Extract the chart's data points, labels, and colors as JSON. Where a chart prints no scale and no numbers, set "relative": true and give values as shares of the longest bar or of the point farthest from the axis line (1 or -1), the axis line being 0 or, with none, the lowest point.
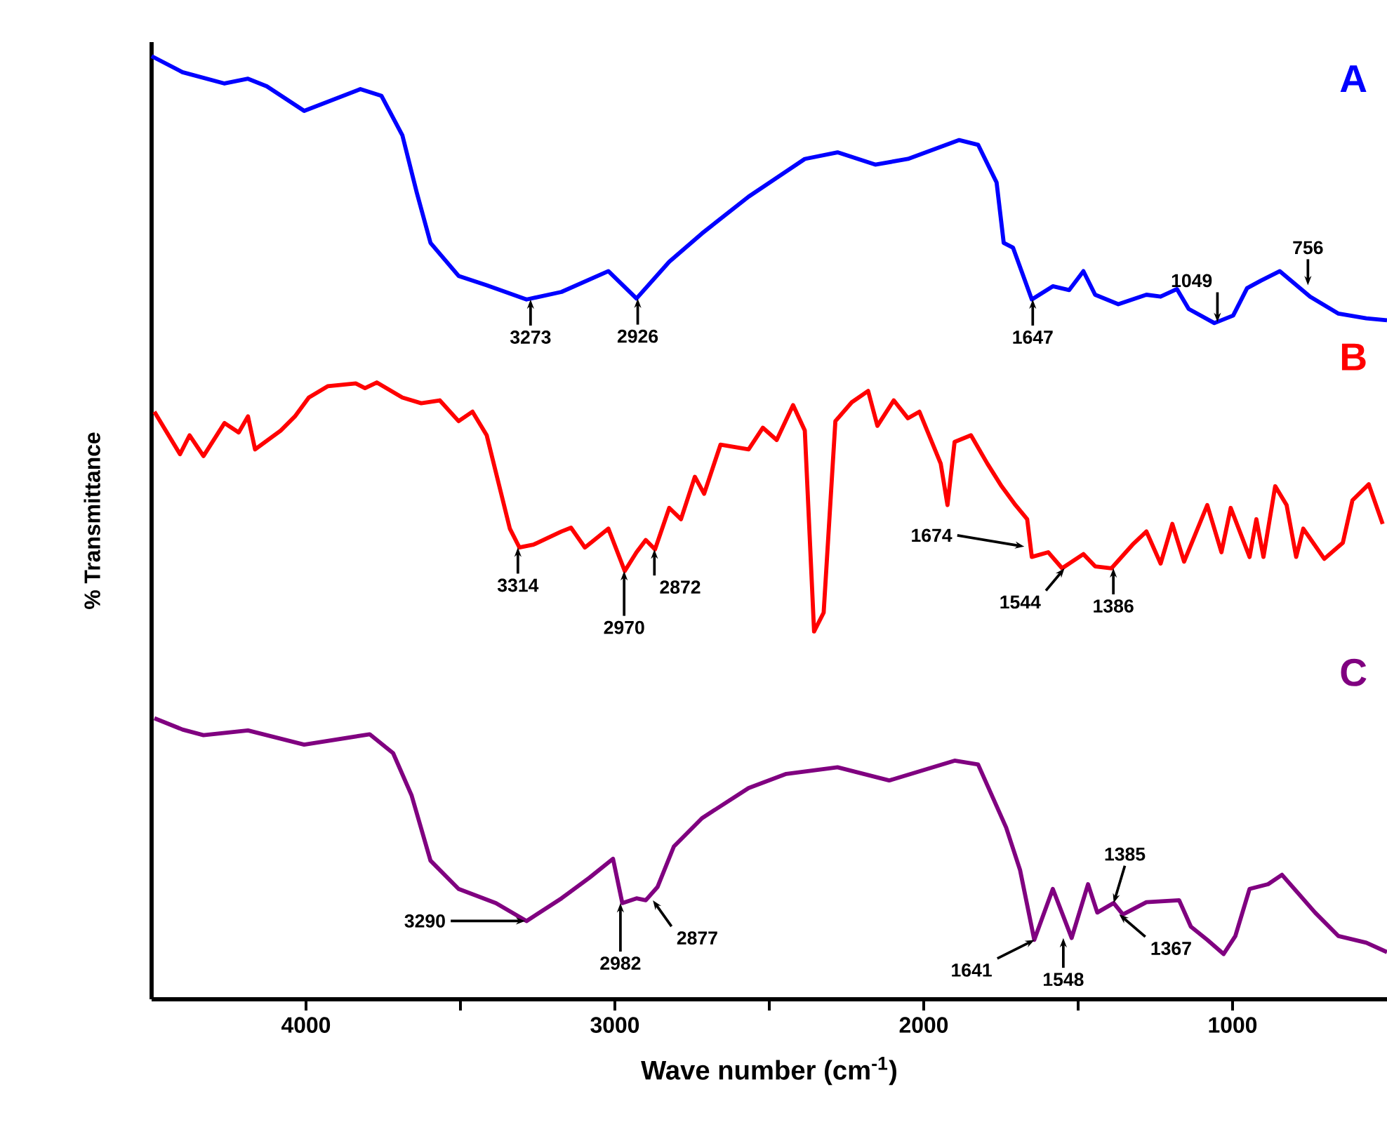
{
  "chart_data": {
    "type": "line",
    "relative": true,
    "line_style": "solid",
    "xlabel": "Wave number (cm$^{-1}$)",
    "ylabel": "% Transmittance",
    "xlim": [
      4500,
      500
    ],
    "xticks": [
      {
        "value": 3500,
        "label": null
      },
      {
        "value": 2500,
        "label": null
      },
      {
        "value": 1500,
        "label": null
      },
      4000,
      3000,
      2000,
      1000
    ],
    "series": [
      {
        "name": "A",
        "color": "#0000ff",
        "x": [
          4500,
          4400,
          4264,
          4188,
          4127,
          4006,
          3824,
          3756,
          3688,
          3642,
          3597,
          3506,
          3415,
          3286,
          3173,
          3021,
          2930,
          2824,
          2718,
          2567,
          2385,
          2279,
          2157,
          2051,
          1885,
          1824,
          1764,
          1741,
          1711,
          1650,
          1582,
          1529,
          1483,
          1445,
          1370,
          1279,
          1233,
          1180,
          1142,
          1059,
          998,
          953,
          908,
          847,
          749,
          657,
          567,
          500
        ],
        "values": [
          1.0,
          0.983,
          0.971,
          0.976,
          0.968,
          0.942,
          0.965,
          0.958,
          0.916,
          0.856,
          0.802,
          0.767,
          0.757,
          0.742,
          0.75,
          0.772,
          0.743,
          0.782,
          0.812,
          0.851,
          0.891,
          0.898,
          0.885,
          0.891,
          0.911,
          0.906,
          0.866,
          0.802,
          0.797,
          0.742,
          0.756,
          0.752,
          0.772,
          0.747,
          0.737,
          0.747,
          0.745,
          0.753,
          0.732,
          0.717,
          0.725,
          0.754,
          0.762,
          0.772,
          0.745,
          0.727,
          0.722,
          0.72
        ]
      },
      {
        "name": "B",
        "color": "#ff0000",
        "x": [
          4491,
          4408,
          4377,
          4332,
          4264,
          4218,
          4188,
          4165,
          4082,
          4036,
          3991,
          3930,
          3839,
          3809,
          3771,
          3688,
          3627,
          3567,
          3506,
          3461,
          3415,
          3340,
          3309,
          3264,
          3173,
          3142,
          3097,
          3021,
          2968,
          2930,
          2900,
          2870,
          2824,
          2786,
          2741,
          2711,
          2658,
          2567,
          2521,
          2476,
          2423,
          2385,
          2355,
          2324,
          2286,
          2233,
          2180,
          2150,
          2097,
          2051,
          2014,
          1945,
          1923,
          1900,
          1847,
          1794,
          1748,
          1703,
          1665,
          1650,
          1597,
          1552,
          1483,
          1445,
          1392,
          1324,
          1279,
          1233,
          1195,
          1157,
          1082,
          1036,
          1006,
          945,
          923,
          900,
          862,
          825,
          794,
          771,
          703,
          643,
          612,
          559,
          514
        ],
        "values": [
          0.623,
          0.578,
          0.598,
          0.576,
          0.611,
          0.601,
          0.618,
          0.583,
          0.603,
          0.618,
          0.638,
          0.65,
          0.653,
          0.648,
          0.654,
          0.638,
          0.632,
          0.635,
          0.613,
          0.623,
          0.598,
          0.499,
          0.479,
          0.482,
          0.496,
          0.5,
          0.479,
          0.499,
          0.454,
          0.474,
          0.487,
          0.477,
          0.521,
          0.509,
          0.554,
          0.536,
          0.588,
          0.583,
          0.606,
          0.593,
          0.63,
          0.603,
          0.39,
          0.41,
          0.613,
          0.633,
          0.645,
          0.608,
          0.635,
          0.616,
          0.623,
          0.568,
          0.524,
          0.591,
          0.598,
          0.568,
          0.544,
          0.524,
          0.509,
          0.469,
          0.474,
          0.457,
          0.472,
          0.459,
          0.457,
          0.482,
          0.496,
          0.462,
          0.504,
          0.464,
          0.524,
          0.474,
          0.521,
          0.469,
          0.509,
          0.469,
          0.544,
          0.524,
          0.469,
          0.499,
          0.467,
          0.484,
          0.529,
          0.546,
          0.504
        ]
      },
      {
        "name": "C",
        "color": "#800080",
        "x": [
          4491,
          4400,
          4332,
          4188,
          4006,
          3794,
          3718,
          3658,
          3597,
          3506,
          3385,
          3286,
          3173,
          3082,
          3006,
          2976,
          2930,
          2900,
          2862,
          2809,
          2718,
          2567,
          2445,
          2279,
          2112,
          1900,
          1824,
          1733,
          1688,
          1642,
          1582,
          1521,
          1468,
          1438,
          1385,
          1355,
          1279,
          1173,
          1135,
          1082,
          1029,
          991,
          945,
          885,
          840,
          733,
          657,
          567,
          500
        ],
        "values": [
          0.298,
          0.286,
          0.28,
          0.285,
          0.27,
          0.281,
          0.261,
          0.216,
          0.147,
          0.117,
          0.102,
          0.083,
          0.107,
          0.129,
          0.149,
          0.102,
          0.107,
          0.105,
          0.119,
          0.162,
          0.192,
          0.224,
          0.239,
          0.246,
          0.232,
          0.253,
          0.249,
          0.182,
          0.137,
          0.063,
          0.117,
          0.065,
          0.122,
          0.092,
          0.102,
          0.09,
          0.103,
          0.105,
          0.077,
          0.063,
          0.048,
          0.067,
          0.117,
          0.122,
          0.132,
          0.092,
          0.067,
          0.06,
          0.05
        ]
      }
    ],
    "annotations": [
      {
        "text": "3273",
        "x": 3273,
        "y": 0.742
      },
      {
        "text": "2926",
        "x": 2926,
        "y": 0.743
      },
      {
        "text": "1647",
        "x": 1647,
        "y": 0.742
      },
      {
        "text": "1049",
        "x": 1049,
        "y": 0.718
      },
      {
        "text": "756",
        "x": 756,
        "y": 0.757
      },
      {
        "text": "3314",
        "x": 3314,
        "y": 0.479
      },
      {
        "text": "2970",
        "x": 2970,
        "y": 0.454
      },
      {
        "text": "2872",
        "x": 2872,
        "y": 0.477
      },
      {
        "text": "1674",
        "x": 1674,
        "y": 0.48
      },
      {
        "text": "1544",
        "x": 1544,
        "y": 0.457
      },
      {
        "text": "1386",
        "x": 1386,
        "y": 0.457
      },
      {
        "text": "3290",
        "x": 3290,
        "y": 0.083
      },
      {
        "text": "2982",
        "x": 2982,
        "y": 0.102
      },
      {
        "text": "2877",
        "x": 2877,
        "y": 0.105
      },
      {
        "text": "1641",
        "x": 1641,
        "y": 0.063
      },
      {
        "text": "1548",
        "x": 1548,
        "y": 0.065
      },
      {
        "text": "1385",
        "x": 1385,
        "y": 0.102
      },
      {
        "text": "1367",
        "x": 1367,
        "y": 0.09
      }
    ]
  }
}
